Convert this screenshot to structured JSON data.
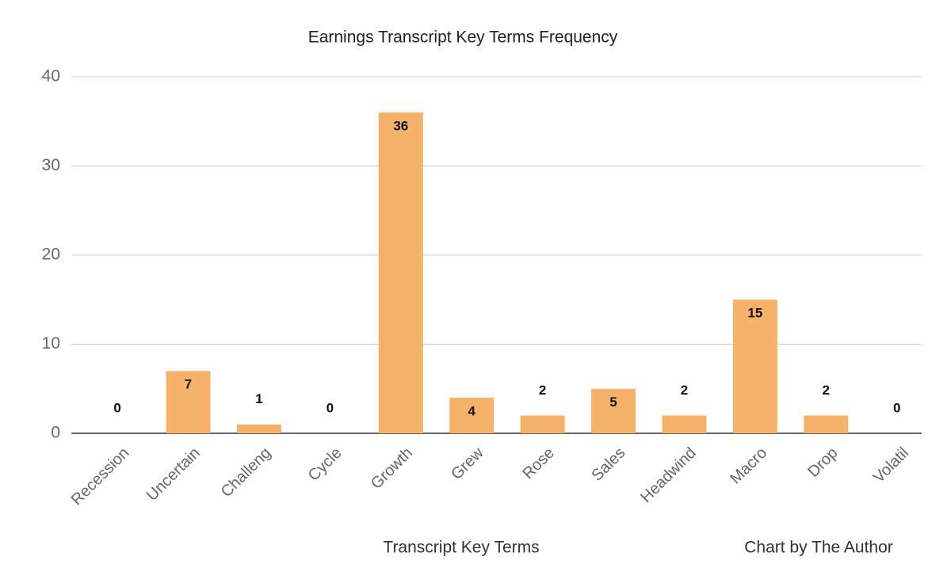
{
  "chart_data": {
    "type": "bar",
    "title": "Earnings Transcript Key Terms Frequency",
    "x_label": "Transcript Key Terms",
    "annotation": "Chart by The Author",
    "categories": [
      "Recession",
      "Uncertain",
      "Challeng",
      "Cycle",
      "Growth",
      "Grew",
      "Rose",
      "Sales",
      "Headwind",
      "Macro",
      "Drop",
      "Volatil"
    ],
    "values": [
      0,
      7,
      1,
      0,
      36,
      4,
      2,
      5,
      2,
      15,
      2,
      0
    ],
    "color": "#f6b26b",
    "ylim": [
      0,
      40
    ],
    "yticks": [
      0,
      10,
      20,
      30,
      40
    ],
    "grid": true
  }
}
